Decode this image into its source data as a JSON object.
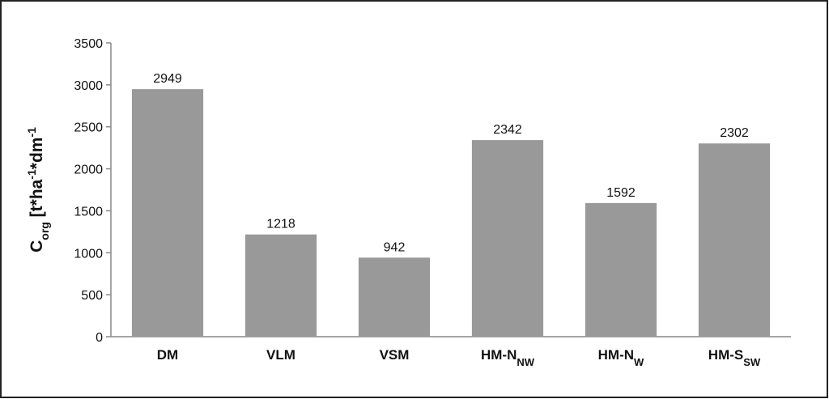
{
  "chart_data": {
    "type": "bar",
    "ylabel": [
      {
        "text": "C"
      },
      {
        "text": "org",
        "shift": "sub"
      },
      {
        "text": " [t*ha"
      },
      {
        "text": "-1",
        "shift": "super"
      },
      {
        "text": "*dm"
      },
      {
        "text": "-1",
        "shift": "super"
      }
    ],
    "categories": [
      [
        "DM"
      ],
      [
        "VLM"
      ],
      [
        "VSM"
      ],
      [
        "HM-N",
        "NW"
      ],
      [
        "HM-N",
        "W"
      ],
      [
        "HM-S",
        "SW"
      ]
    ],
    "values": [
      2949,
      1218,
      942,
      2342,
      1592,
      2302
    ],
    "color": "#999999",
    "ylim": [
      0,
      3500
    ],
    "yticks": [
      0,
      500,
      1000,
      1500,
      2000,
      2500,
      3000,
      3500
    ],
    "grid": false
  }
}
